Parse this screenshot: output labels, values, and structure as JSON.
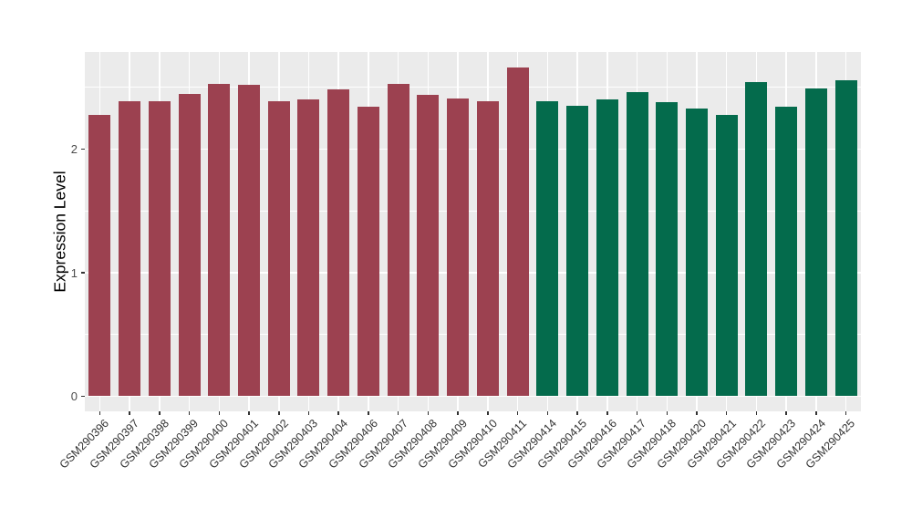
{
  "chart_data": {
    "type": "bar",
    "title": "",
    "xlabel": "",
    "ylabel": "Expression Level",
    "categories": [
      "GSM290396",
      "GSM290397",
      "GSM290398",
      "GSM290399",
      "GSM290400",
      "GSM290401",
      "GSM290402",
      "GSM290403",
      "GSM290404",
      "GSM290406",
      "GSM290407",
      "GSM290408",
      "GSM290409",
      "GSM290410",
      "GSM290411",
      "GSM290414",
      "GSM290415",
      "GSM290416",
      "GSM290417",
      "GSM290418",
      "GSM290420",
      "GSM290421",
      "GSM290422",
      "GSM290423",
      "GSM290424",
      "GSM290425"
    ],
    "values": [
      2.28,
      2.39,
      2.39,
      2.45,
      2.53,
      2.52,
      2.39,
      2.4,
      2.48,
      2.34,
      2.53,
      2.44,
      2.41,
      2.39,
      2.66,
      2.39,
      2.35,
      2.4,
      2.46,
      2.38,
      2.33,
      2.28,
      2.54,
      2.34,
      2.49,
      2.56
    ],
    "groups": [
      "maroon",
      "maroon",
      "maroon",
      "maroon",
      "maroon",
      "maroon",
      "maroon",
      "maroon",
      "maroon",
      "maroon",
      "maroon",
      "maroon",
      "maroon",
      "maroon",
      "maroon",
      "green",
      "green",
      "green",
      "green",
      "green",
      "green",
      "green",
      "green",
      "green",
      "green",
      "green"
    ],
    "group_colors": {
      "maroon": "#9C4150",
      "green": "#046B4C"
    },
    "y_ticks": [
      0,
      1,
      2
    ],
    "y_tick_labels": [
      "0",
      "1",
      "2"
    ],
    "y_minor_ticks": [
      0.5,
      1.5,
      2.5
    ],
    "ylim": [
      -0.12,
      2.79
    ],
    "legend": "none",
    "grid": "on",
    "panel_bg": "#EBEBEB",
    "grid_color": "#FFFFFF"
  }
}
